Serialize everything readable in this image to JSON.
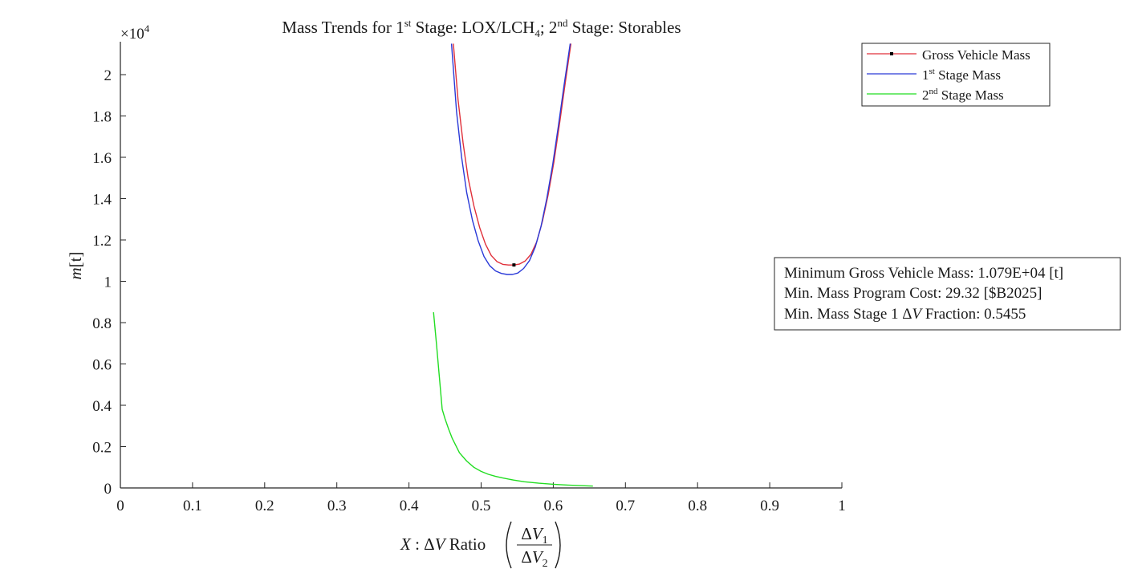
{
  "chart_data": {
    "type": "line",
    "title": {
      "prefix": "Mass Trends for 1",
      "sup1": "st",
      "middle": " Stage: LOX/LCH",
      "sub": "4",
      "middle2": "; 2",
      "sup2": "nd",
      "suffix": " Stage: Storables"
    },
    "ylabel": {
      "italic": "m",
      "rest": "[t]"
    },
    "xlabel": {
      "italic_x": "X",
      "colon": " : ",
      "delta": "Δ",
      "italic_v": "V",
      "ratio": " Ratio",
      "num_delta": "Δ",
      "num_v": "V",
      "num_sub": "1",
      "den_delta": "Δ",
      "den_v": "V",
      "den_sub": "2"
    },
    "y_exponent": {
      "base": "×10",
      "power": "4"
    },
    "xlim": [
      0,
      1
    ],
    "ylim": [
      0,
      21500
    ],
    "xticks": [
      0,
      0.1,
      0.2,
      0.3,
      0.4,
      0.5,
      0.6,
      0.7,
      0.8,
      0.9,
      1
    ],
    "xtick_labels": [
      "0",
      "0.1",
      "0.2",
      "0.3",
      "0.4",
      "0.5",
      "0.6",
      "0.7",
      "0.8",
      "0.9",
      "1"
    ],
    "yticks": [
      0,
      2000,
      4000,
      6000,
      8000,
      10000,
      12000,
      14000,
      16000,
      18000,
      20000
    ],
    "ytick_labels": [
      "0",
      "0.2",
      "0.4",
      "0.6",
      "0.8",
      "1",
      "1.2",
      "1.4",
      "1.6",
      "1.8",
      "2"
    ],
    "grid": false,
    "legend_placement": "top-right, outside plot",
    "series": [
      {
        "name_main": "Gross Vehicle Mass",
        "color": "#e0303a",
        "x": [
          0.4615,
          0.468,
          0.475,
          0.482,
          0.49,
          0.498,
          0.506,
          0.514,
          0.522,
          0.53,
          0.538,
          0.5455,
          0.553,
          0.561,
          0.569,
          0.577,
          0.585,
          0.593,
          0.601,
          0.609,
          0.617,
          0.6245
        ],
        "y": [
          21500,
          18800,
          16700,
          15000,
          13650,
          12600,
          11800,
          11250,
          10950,
          10820,
          10790,
          10790,
          10830,
          10980,
          11300,
          11900,
          12900,
          14200,
          15800,
          17700,
          19700,
          21500
        ]
      },
      {
        "name_main": "1",
        "name_sup": "st",
        "name_rest": " Stage Mass",
        "color": "#2a3ad8",
        "x": [
          0.459,
          0.466,
          0.473,
          0.48,
          0.488,
          0.496,
          0.504,
          0.512,
          0.52,
          0.528,
          0.536,
          0.5435,
          0.551,
          0.559,
          0.567,
          0.575,
          0.583,
          0.591,
          0.599,
          0.607,
          0.615,
          0.6235
        ],
        "y": [
          21500,
          18200,
          16000,
          14300,
          12950,
          11950,
          11200,
          10750,
          10500,
          10380,
          10330,
          10330,
          10400,
          10620,
          11000,
          11650,
          12650,
          14000,
          15600,
          17500,
          19500,
          21500
        ]
      },
      {
        "name_main": "2",
        "name_sup": "nd",
        "name_rest": " Stage Mass",
        "color": "#22dd22",
        "x": [
          0.434,
          0.438,
          0.442,
          0.446,
          0.45,
          0.455,
          0.46,
          0.465,
          0.47,
          0.48,
          0.49,
          0.5,
          0.51,
          0.52,
          0.53,
          0.545,
          0.56,
          0.58,
          0.6,
          0.62,
          0.64,
          0.655
        ],
        "y": [
          8500,
          7000,
          5400,
          3800,
          3350,
          2850,
          2400,
          2050,
          1700,
          1300,
          1000,
          800,
          660,
          560,
          480,
          380,
          300,
          230,
          180,
          140,
          110,
          90
        ]
      }
    ],
    "min_marker": {
      "x": 0.5455,
      "y": 10790,
      "color": "#000000"
    },
    "annotation": {
      "line1_text": "Minimum Gross Vehicle Mass: 1.079E+04 [t]",
      "line2_text": "Min. Mass Program Cost: 29.32 [$B2025]",
      "line3_prefix": "Min. Mass Stage 1 ",
      "line3_delta": "Δ",
      "line3_v": "V",
      "line3_suffix": " Fraction: 0.5455"
    }
  }
}
